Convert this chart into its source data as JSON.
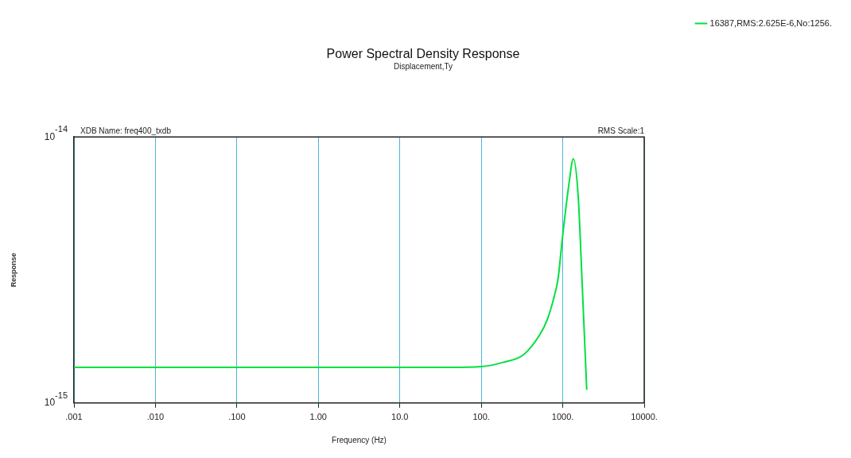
{
  "chart_data": {
    "type": "line",
    "title": "Power Spectral Density Response",
    "subtitle": "Displacement,Ty",
    "xlabel": "Frequency (Hz)",
    "ylabel": "Response",
    "annotations": [
      "XDB Name: freq400_txdb",
      "RMS Scale:1"
    ],
    "series": [
      {
        "name": "16387,RMS:2.625E-6,No:1256.",
        "color": "#00e040",
        "x": [
          0.001,
          0.01,
          0.1,
          1,
          10,
          42,
          100,
          182,
          331,
          525,
          650,
          760,
          880,
          980,
          1189,
          1350,
          1550,
          1740,
          1970
        ],
        "values": [
          1.36e-15,
          1.36e-15,
          1.36e-15,
          1.36e-15,
          1.36e-15,
          1.36e-15,
          1.37e-15,
          1.42e-15,
          1.52e-15,
          1.81e-15,
          2.07e-15,
          2.42e-15,
          2.96e-15,
          4.05e-15,
          6.62e-15,
          8.27e-15,
          5.92e-15,
          2.71e-15,
          1.12e-15
        ]
      }
    ],
    "log": "xy",
    "xlim": [
      0.001,
      10000
    ],
    "ylim": [
      1e-15,
      1e-14
    ],
    "xticks": [
      {
        "value": 0.001,
        "label": ".001"
      },
      {
        "value": 0.01,
        "label": ".010"
      },
      {
        "value": 0.1,
        "label": ".100"
      },
      {
        "value": 1,
        "label": "1.00"
      },
      {
        "value": 10,
        "label": "10.0"
      },
      {
        "value": 100,
        "label": "100."
      },
      {
        "value": 1000,
        "label": "1000."
      },
      {
        "value": 10000,
        "label": "10000."
      }
    ],
    "yticks": [
      {
        "value": 1e-15,
        "label": "10$^{-15}$"
      },
      {
        "value": 1e-14,
        "label": "10$^{-14}$"
      }
    ],
    "grid": "x",
    "legend": "top right"
  }
}
